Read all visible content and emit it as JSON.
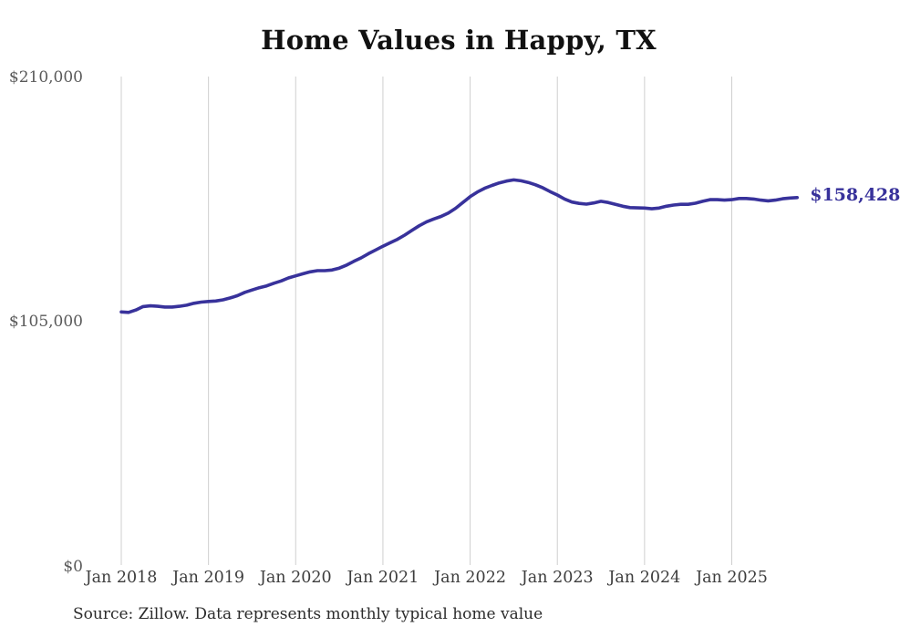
{
  "chart_data": {
    "type": "line",
    "title": "Home Values in Happy, TX",
    "series_name": "Monthly typical home value",
    "start_month": "Jan 2018",
    "frequency": "monthly",
    "values": [
      109300,
      109100,
      110100,
      111600,
      111900,
      111700,
      111400,
      111400,
      111700,
      112200,
      113000,
      113500,
      113800,
      114000,
      114500,
      115300,
      116300,
      117700,
      118700,
      119700,
      120500,
      121600,
      122600,
      123900,
      124800,
      125700,
      126500,
      127000,
      127000,
      127300,
      128100,
      129400,
      131000,
      132500,
      134300,
      135900,
      137500,
      139000,
      140500,
      142300,
      144300,
      146300,
      148000,
      149200,
      150300,
      151800,
      153800,
      156300,
      158800,
      160800,
      162400,
      163600,
      164700,
      165500,
      166000,
      165600,
      164900,
      163900,
      162600,
      161000,
      159500,
      157800,
      156500,
      155900,
      155600,
      156100,
      156800,
      156300,
      155500,
      154700,
      154100,
      154000,
      153900,
      153600,
      153900,
      154700,
      155200,
      155500,
      155500,
      156000,
      156800,
      157500,
      157500,
      157300,
      157500,
      158000,
      158000,
      157800,
      157300,
      157000,
      157300,
      157900,
      158200,
      158428
    ],
    "x_ticks": [
      {
        "label": "Jan 2018",
        "month_index": 0
      },
      {
        "label": "Jan 2019",
        "month_index": 12
      },
      {
        "label": "Jan 2020",
        "month_index": 24
      },
      {
        "label": "Jan 2021",
        "month_index": 36
      },
      {
        "label": "Jan 2022",
        "month_index": 48
      },
      {
        "label": "Jan 2023",
        "month_index": 60
      },
      {
        "label": "Jan 2024",
        "month_index": 72
      },
      {
        "label": "Jan 2025",
        "month_index": 84
      }
    ],
    "y_ticks": [
      {
        "label": "$0",
        "value": 0
      },
      {
        "label": "$105,000",
        "value": 105000
      },
      {
        "label": "$210,000",
        "value": 210000
      }
    ],
    "ylim": [
      0,
      210000
    ],
    "grid": "vertical-only",
    "legend": "none",
    "end_label": {
      "text": "$158,428",
      "value": 158428
    },
    "colors": {
      "line": "#38329b",
      "end_label": "#38329b",
      "gridline": "#cfcfcf",
      "title": "#111111",
      "x_tick": "#3d3d3d",
      "y_tick": "#5a5a5a",
      "source": "#2b2b2b",
      "background": "#ffffff"
    }
  },
  "source_note": "Source: Zillow. Data represents monthly typical home value"
}
